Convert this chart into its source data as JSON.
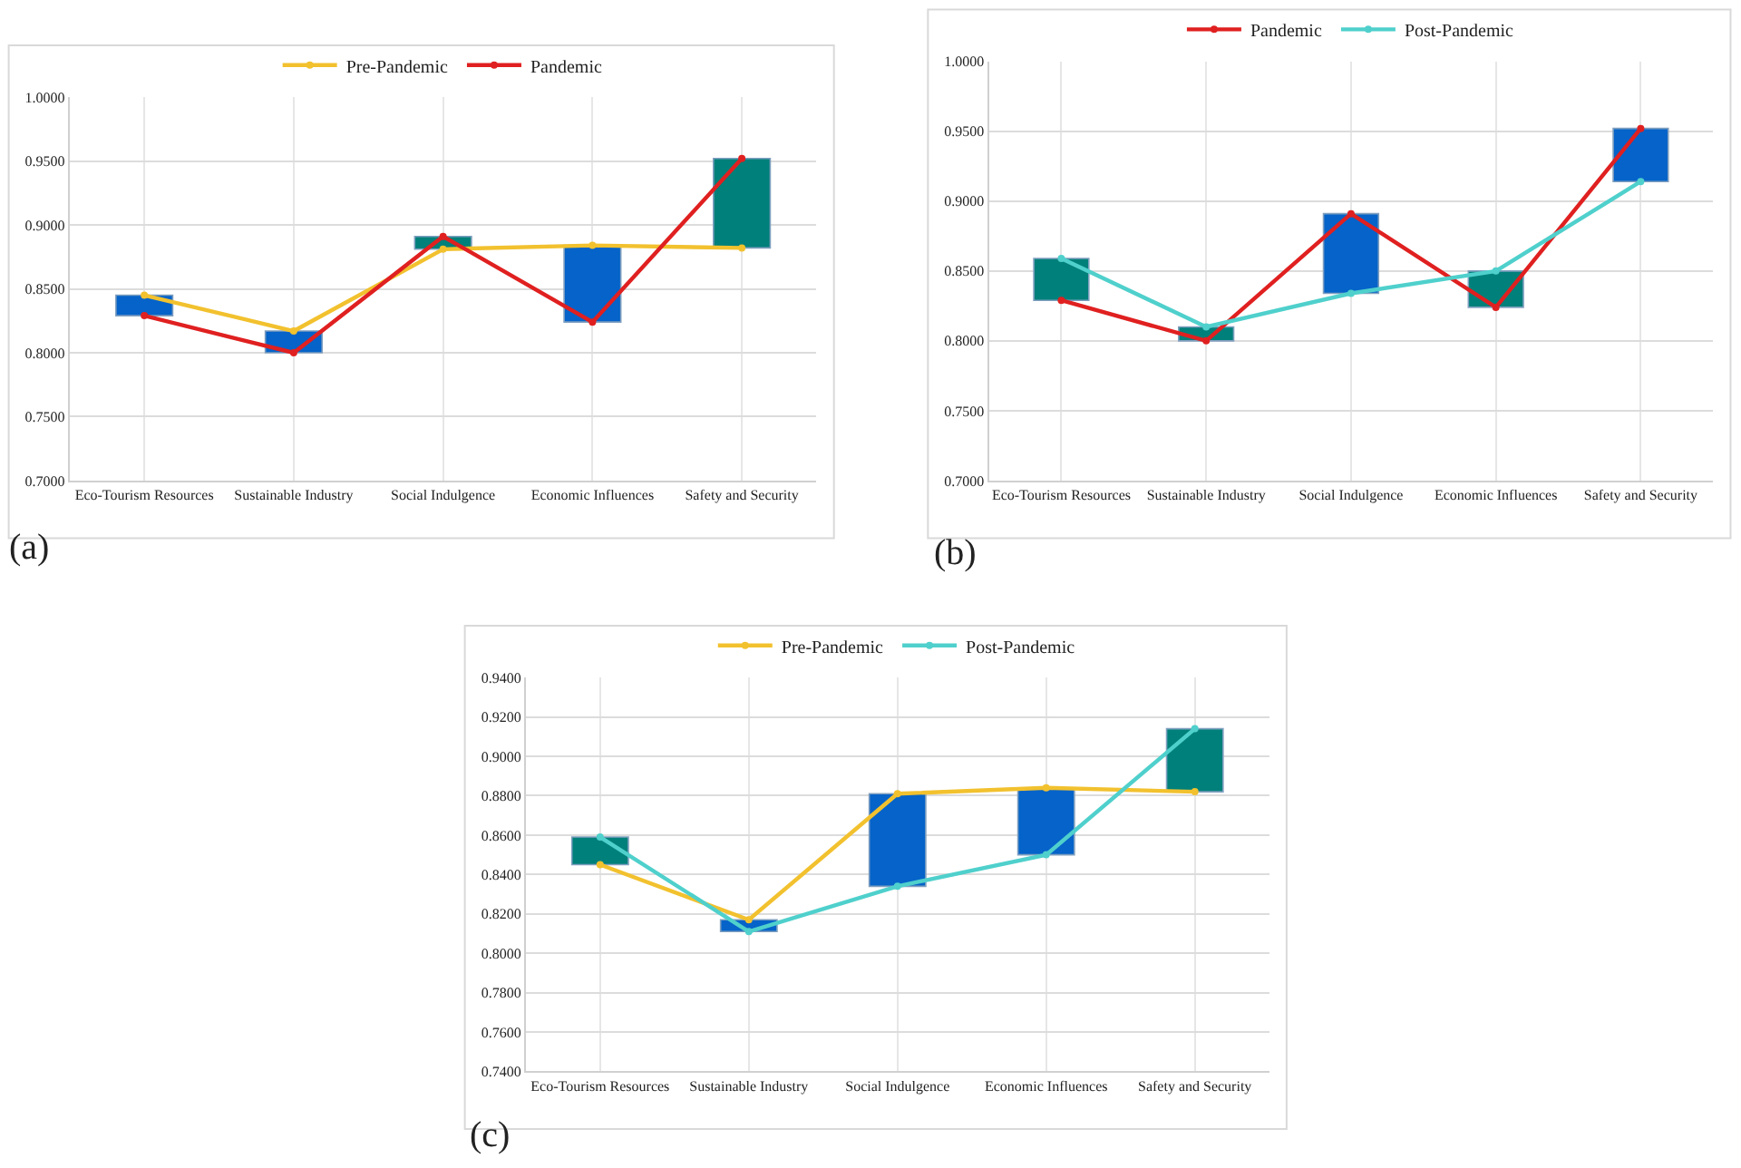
{
  "chart_data": [
    {
      "type": "line",
      "categories": [
        "Eco-Tourism Resources",
        "Sustainable Industry",
        "Social Indulgence",
        "Economic Influences",
        "Safety and Security"
      ],
      "ylim": [
        0.7,
        1.0
      ],
      "yticks": [
        {
          "value": 0.7,
          "label": "0.7000"
        },
        {
          "value": 0.75,
          "label": "0.7500"
        },
        {
          "value": 0.8,
          "label": "0.8000"
        },
        {
          "value": 0.85,
          "label": "0.8500"
        },
        {
          "value": 0.9,
          "label": "0.9000"
        },
        {
          "value": 0.95,
          "label": "0.9500"
        },
        {
          "value": 1.0,
          "label": "1.0000"
        }
      ],
      "grid": true,
      "legend": "top",
      "marker": "circle",
      "line_style": "solid",
      "annotations": [
        "(a)"
      ],
      "series": [
        {
          "name": "Pre-Pandemic",
          "color": "#f2c12e",
          "values": [
            0.845,
            0.817,
            0.881,
            0.884,
            0.882
          ]
        },
        {
          "name": "Pandemic",
          "color": "#e02020",
          "values": [
            0.829,
            0.8,
            0.891,
            0.824,
            0.952
          ]
        },
        {
          "type": "bar",
          "base": [
            0.829,
            0.8,
            0.881,
            0.824,
            0.882
          ],
          "values": [
            0.016,
            0.017,
            0.01,
            0.06,
            0.07
          ],
          "colors": [
            "#0563c9",
            "#0563c9",
            "#00807a",
            "#0563c9",
            "#00807a"
          ]
        }
      ]
    },
    {
      "type": "line",
      "categories": [
        "Eco-Tourism Resources",
        "Sustainable Industry",
        "Social Indulgence",
        "Economic Influences",
        "Safety and Security"
      ],
      "ylim": [
        0.7,
        1.0
      ],
      "yticks": [
        {
          "value": 0.7,
          "label": "0.7000"
        },
        {
          "value": 0.75,
          "label": "0.7500"
        },
        {
          "value": 0.8,
          "label": "0.8000"
        },
        {
          "value": 0.85,
          "label": "0.8500"
        },
        {
          "value": 0.9,
          "label": "0.9000"
        },
        {
          "value": 0.95,
          "label": "0.9500"
        },
        {
          "value": 1.0,
          "label": "1.0000"
        }
      ],
      "grid": true,
      "legend": "top",
      "marker": "circle",
      "line_style": "solid",
      "annotations": [
        "(b)"
      ],
      "series": [
        {
          "name": "Pandemic",
          "color": "#e02020",
          "values": [
            0.829,
            0.8,
            0.891,
            0.824,
            0.952
          ]
        },
        {
          "name": "Post-Pandemic",
          "color": "#4fd0cc",
          "values": [
            0.859,
            0.81,
            0.834,
            0.85,
            0.914
          ]
        },
        {
          "type": "bar",
          "base": [
            0.829,
            0.8,
            0.834,
            0.824,
            0.914
          ],
          "values": [
            0.03,
            0.01,
            0.057,
            0.026,
            0.038
          ],
          "colors": [
            "#00807a",
            "#00807a",
            "#0563c9",
            "#00807a",
            "#0563c9"
          ]
        }
      ]
    },
    {
      "type": "line",
      "categories": [
        "Eco-Tourism Resources",
        "Sustainable Industry",
        "Social Indulgence",
        "Economic Influences",
        "Safety and Security"
      ],
      "ylim": [
        0.74,
        0.94
      ],
      "yticks": [
        {
          "value": 0.74,
          "label": "0.7400"
        },
        {
          "value": 0.76,
          "label": "0.7600"
        },
        {
          "value": 0.78,
          "label": "0.7800"
        },
        {
          "value": 0.8,
          "label": "0.8000"
        },
        {
          "value": 0.82,
          "label": "0.8200"
        },
        {
          "value": 0.84,
          "label": "0.8400"
        },
        {
          "value": 0.86,
          "label": "0.8600"
        },
        {
          "value": 0.88,
          "label": "0.8800"
        },
        {
          "value": 0.9,
          "label": "0.9000"
        },
        {
          "value": 0.92,
          "label": "0.9200"
        },
        {
          "value": 0.94,
          "label": "0.9400"
        }
      ],
      "grid": true,
      "legend": "top",
      "marker": "circle",
      "line_style": "solid",
      "annotations": [
        "(c)"
      ],
      "series": [
        {
          "name": "Pre-Pandemic",
          "color": "#f2c12e",
          "values": [
            0.845,
            0.817,
            0.881,
            0.884,
            0.882
          ]
        },
        {
          "name": "Post-Pandemic",
          "color": "#4fd0cc",
          "values": [
            0.859,
            0.811,
            0.834,
            0.85,
            0.914
          ]
        },
        {
          "type": "bar",
          "base": [
            0.845,
            0.811,
            0.834,
            0.85,
            0.882
          ],
          "values": [
            0.014,
            0.006,
            0.047,
            0.034,
            0.032
          ],
          "colors": [
            "#00807a",
            "#0563c9",
            "#0563c9",
            "#0563c9",
            "#00807a"
          ]
        }
      ]
    }
  ]
}
